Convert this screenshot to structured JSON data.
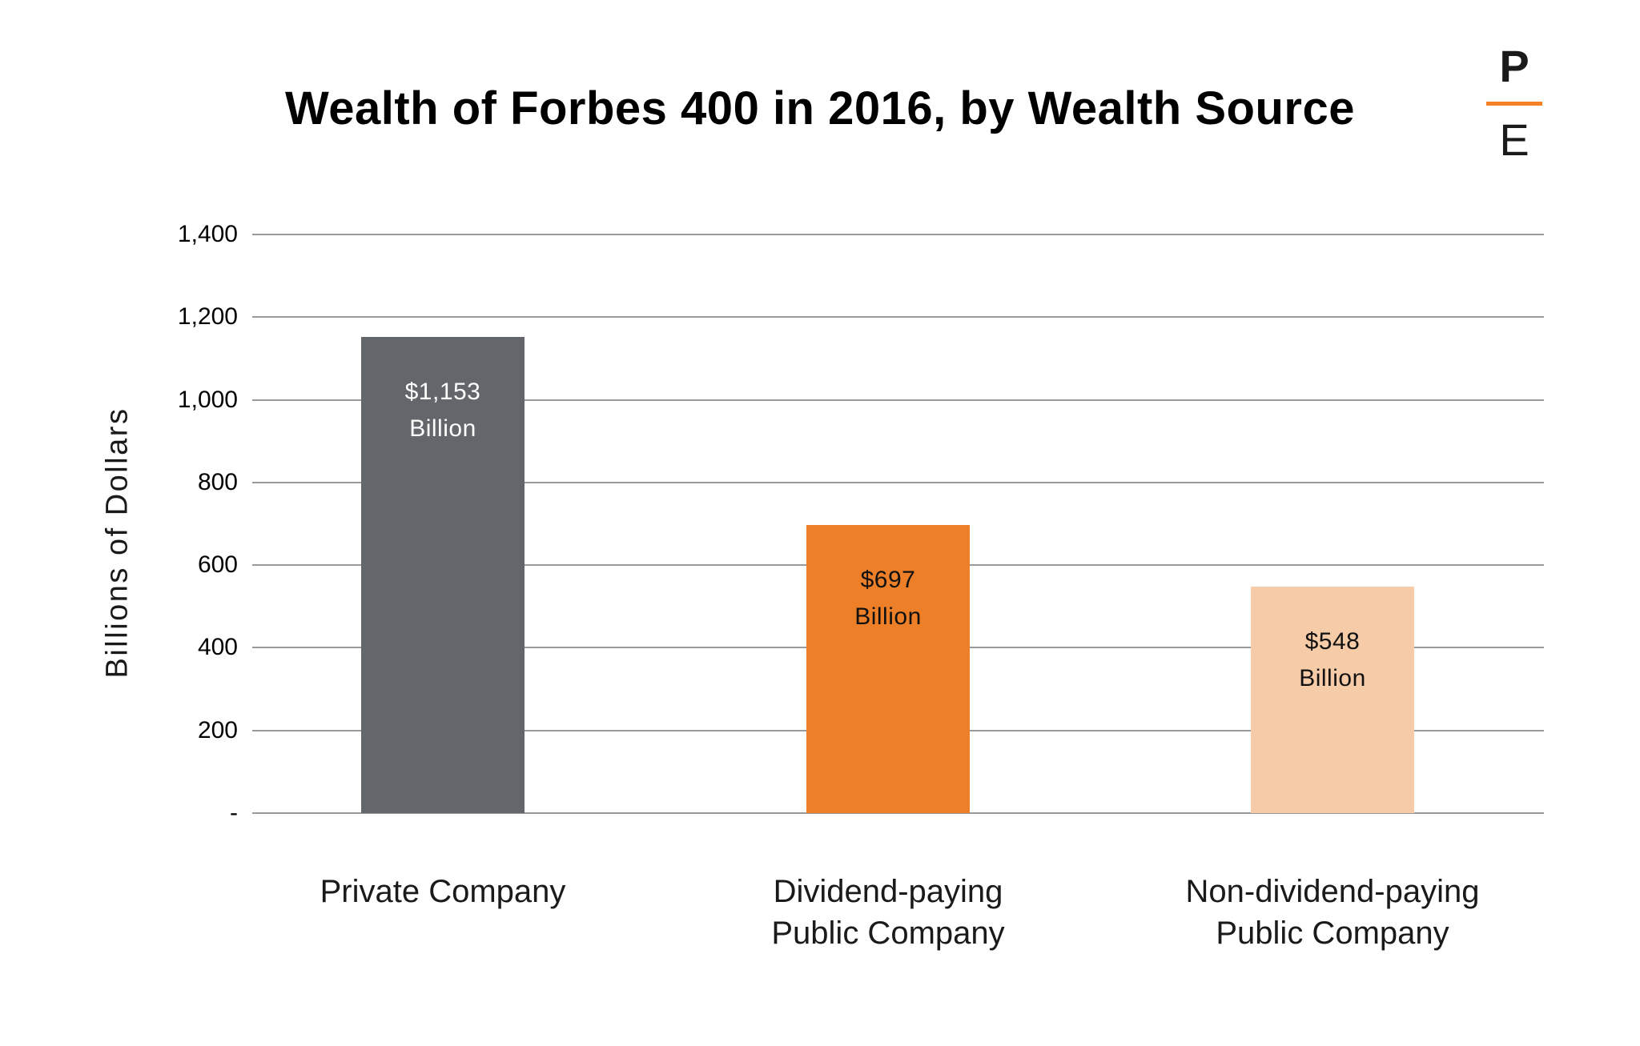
{
  "header": {
    "title": "Wealth of Forbes 400 in 2016, by Wealth Source",
    "logo": {
      "top_letter": "P",
      "bottom_letter": "E",
      "rule_color": "#F58025"
    }
  },
  "chart_data": {
    "type": "bar",
    "title": "Wealth of Forbes 400 in 2016, by Wealth Source",
    "xlabel": "",
    "ylabel": "Billions of Dollars",
    "ylim": [
      0,
      1400
    ],
    "grid": true,
    "legend": "none",
    "categories": [
      "Private Company",
      "Dividend-paying Public Company",
      "Non-dividend-paying Public Company"
    ],
    "values": [
      1153,
      697,
      548
    ],
    "yticks": [
      {
        "value": 1400,
        "label": "1,400"
      },
      {
        "value": 1200,
        "label": "1,200"
      },
      {
        "value": 1000,
        "label": "1,000"
      },
      {
        "value": 800,
        "label": "800"
      },
      {
        "value": 600,
        "label": "600"
      },
      {
        "value": 400,
        "label": "400"
      },
      {
        "value": 200,
        "label": "200"
      },
      {
        "value": 0,
        "label": "-"
      }
    ],
    "bars": [
      {
        "name": "private-company",
        "category_lines": [
          "Private Company"
        ],
        "value": 1153,
        "amount_label": "$1,153",
        "unit_label": "Billion",
        "bar_color": "#63666A",
        "label_color": "#FFFFFF"
      },
      {
        "name": "dividend-paying-public-company",
        "category_lines": [
          "Dividend-paying",
          "Public Company"
        ],
        "value": 697,
        "amount_label": "$697",
        "unit_label": "Billion",
        "bar_color": "#EC7F27",
        "label_color": "#111111"
      },
      {
        "name": "non-dividend-paying-public-company",
        "category_lines": [
          "Non-dividend-paying",
          "Public Company"
        ],
        "value": 548,
        "amount_label": "$548",
        "unit_label": "Billion",
        "bar_color": "#F6CBA7",
        "label_color": "#111111"
      }
    ],
    "colors": {
      "gridline": "#9A9A9A",
      "title_text": "#000000",
      "axis_text": "#1A1A1A"
    }
  }
}
